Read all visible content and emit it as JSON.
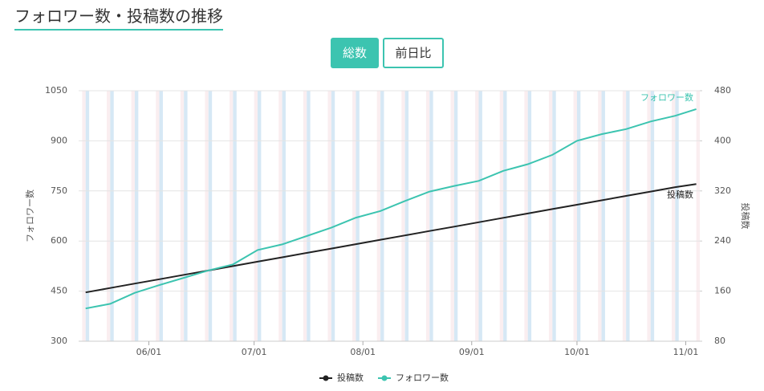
{
  "header": {
    "title": "フォロワー数・投稿数の推移"
  },
  "tabs": [
    "総数",
    "前日比"
  ],
  "chart_data": {
    "type": "line",
    "x": [
      "05/14",
      "05/21",
      "05/28",
      "06/04",
      "06/11",
      "06/18",
      "06/25",
      "07/02",
      "07/09",
      "07/16",
      "07/23",
      "07/30",
      "08/06",
      "08/13",
      "08/20",
      "08/27",
      "09/03",
      "09/10",
      "09/17",
      "09/24",
      "10/01",
      "10/08",
      "10/15",
      "10/22",
      "10/29",
      "11/04"
    ],
    "xlim": [
      "05/12",
      "11/05"
    ],
    "xticks": [
      "06/01",
      "07/01",
      "08/01",
      "09/01",
      "10/01",
      "11/01"
    ],
    "ylabel": "フォロワー数",
    "y2label": "投稿数",
    "ylim": [
      300,
      1050
    ],
    "yticks": [
      300,
      450,
      600,
      750,
      900,
      1050
    ],
    "y2lim": [
      80,
      480
    ],
    "y2ticks": [
      80,
      160,
      240,
      320,
      400,
      480
    ],
    "grid": true,
    "legend": "bottom",
    "series": [
      {
        "name": "投稿数",
        "color": "#222222",
        "axis": "y2",
        "values": [
          158,
          165,
          172,
          179,
          186,
          193,
          200,
          207,
          214,
          221,
          228,
          235,
          242,
          249,
          256,
          263,
          270,
          277,
          284,
          291,
          298,
          305,
          312,
          319,
          326,
          331
        ]
      },
      {
        "name": "フォロワー数",
        "color": "#3cc4b0",
        "values": [
          398,
          412,
          445,
          468,
          490,
          512,
          530,
          573,
          590,
          615,
          640,
          670,
          690,
          720,
          748,
          765,
          780,
          810,
          830,
          858,
          900,
          920,
          935,
          958,
          975,
          995
        ]
      }
    ]
  }
}
